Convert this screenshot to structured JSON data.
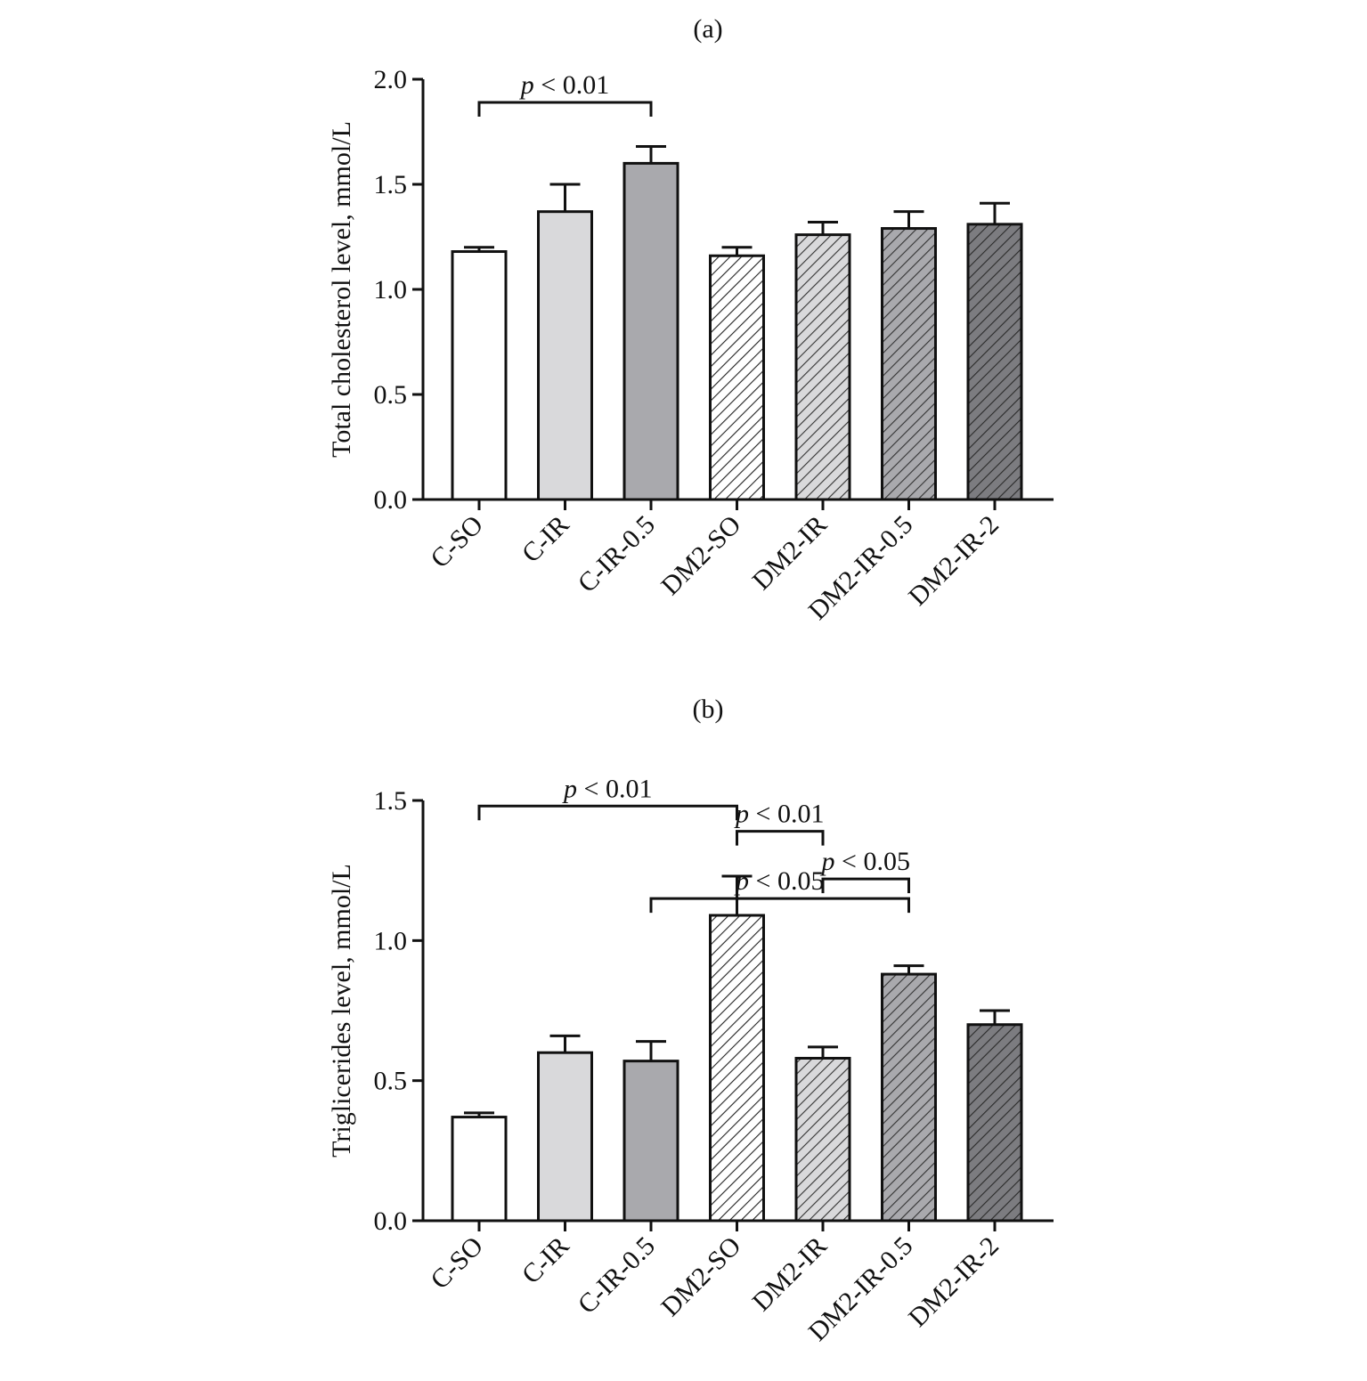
{
  "chart_data": [
    {
      "type": "bar",
      "panel_label": "(a)",
      "ylabel": "Total cholesterol level, mmol/L",
      "xlabel": "",
      "ylim": [
        0,
        2.0
      ],
      "yticks": [
        "0.0",
        "0.5",
        "1.0",
        "1.5",
        "2.0"
      ],
      "categories": [
        "C-SO",
        "C-IR",
        "C-IR-0.5",
        "DM2-SO",
        "DM2-IR",
        "DM2-IR-0.5",
        "DM2-IR-2"
      ],
      "values": [
        1.18,
        1.37,
        1.6,
        1.16,
        1.26,
        1.29,
        1.31
      ],
      "errors": [
        0.02,
        0.13,
        0.08,
        0.04,
        0.06,
        0.08,
        0.1
      ],
      "significance": [
        {
          "from": 0,
          "to": 2,
          "level": 1.89,
          "text": "< 0.01",
          "prefix": "p"
        }
      ]
    },
    {
      "type": "bar",
      "panel_label": "(b)",
      "ylabel": "Trigliceridеs level, mmol/L",
      "xlabel": "",
      "ylim": [
        0,
        1.5
      ],
      "yticks": [
        "0.0",
        "0.5",
        "1.0",
        "1.5"
      ],
      "categories": [
        "C-SO",
        "C-IR",
        "C-IR-0.5",
        "DM2-SO",
        "DM2-IR",
        "DM2-IR-0.5",
        "DM2-IR-2"
      ],
      "values": [
        0.37,
        0.6,
        0.57,
        1.09,
        0.58,
        0.88,
        0.7
      ],
      "errors": [
        0.015,
        0.06,
        0.07,
        0.14,
        0.04,
        0.03,
        0.05
      ],
      "significance": [
        {
          "from": 0,
          "to": 3,
          "level": 1.48,
          "text": "< 0.01",
          "prefix": "p"
        },
        {
          "from": 3,
          "to": 4,
          "level": 1.39,
          "text": "< 0.01",
          "prefix": "p"
        },
        {
          "from": 4,
          "to": 5,
          "level": 1.22,
          "text": "< 0.05",
          "prefix": "p"
        },
        {
          "from": 2,
          "to": 5,
          "level": 1.15,
          "text": "< 0.05",
          "prefix": "p"
        }
      ]
    }
  ],
  "bar_styles": [
    {
      "fill": "#ffffff",
      "hatch": false,
      "hatch_color": ""
    },
    {
      "fill": "#d9d9db",
      "hatch": false,
      "hatch_color": ""
    },
    {
      "fill": "#a9a9ad",
      "hatch": false,
      "hatch_color": ""
    },
    {
      "fill": "#ffffff",
      "hatch": true,
      "hatch_color": "#222222"
    },
    {
      "fill": "#d9d9db",
      "hatch": true,
      "hatch_color": "#333333"
    },
    {
      "fill": "#a9a9ad",
      "hatch": true,
      "hatch_color": "#333333"
    },
    {
      "fill": "#7c7c80",
      "hatch": true,
      "hatch_color": "#2a2a2a"
    }
  ]
}
